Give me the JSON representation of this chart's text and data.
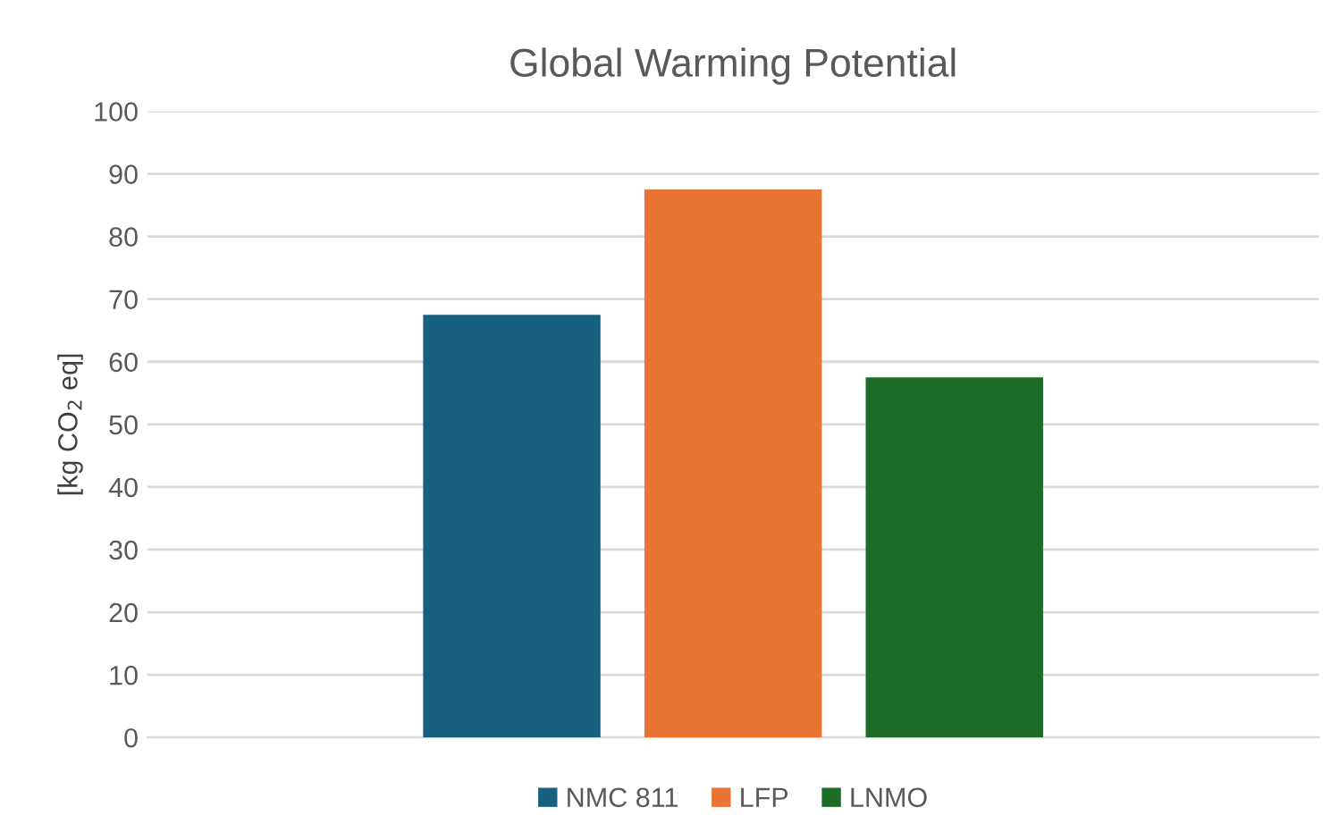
{
  "chart_data": {
    "type": "bar",
    "title": "Global Warming Potential",
    "ylabel": "[kg CO$_{2}$ eq]",
    "categories": [
      null
    ],
    "series": [
      {
        "name": "NMC 811",
        "color": "#17607f",
        "values": [
          67.5
        ]
      },
      {
        "name": "LFP",
        "color": "#e77432",
        "values": [
          87.5
        ]
      },
      {
        "name": "LNMO",
        "color": "#1c6b26",
        "values": [
          57.5
        ]
      }
    ],
    "ylim": [
      0,
      100
    ],
    "yticks": [
      0,
      10,
      20,
      30,
      40,
      50,
      60,
      70,
      80,
      90,
      100
    ],
    "grid": "y",
    "legend": "bottom"
  }
}
